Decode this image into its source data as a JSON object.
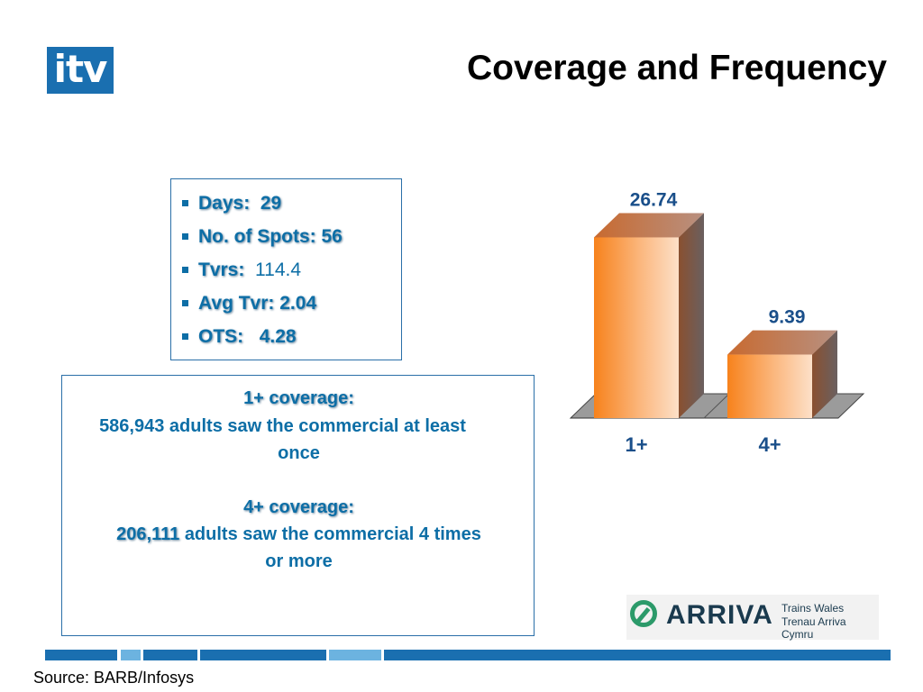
{
  "header": {
    "logo_text": "itv",
    "title": "Coverage and Frequency"
  },
  "stats": {
    "days": {
      "label": "Days:",
      "value": "29"
    },
    "spots": {
      "label": "No. of Spots:",
      "value": "56"
    },
    "tvrs": {
      "label": "Tvrs:",
      "value": "114.4"
    },
    "avg_tvr": {
      "label": "Avg Tvr:",
      "value": "2.04"
    },
    "ots": {
      "label": "OTS:",
      "value": "4.28"
    }
  },
  "coverage": {
    "one_plus_heading": "1+ coverage:",
    "one_plus_text_line1": "586,943 adults saw the commercial at least",
    "one_plus_text_line2": "once",
    "four_plus_heading": "4+ coverage:",
    "four_plus_number": "206,111",
    "four_plus_text_line1": "adults saw the commercial 4 times",
    "four_plus_text_line2": "or more"
  },
  "chart_data": {
    "type": "bar",
    "categories": [
      "1+",
      "4+"
    ],
    "values": [
      26.74,
      9.39
    ],
    "data_labels": [
      "26.74",
      "9.39"
    ],
    "title": "",
    "xlabel": "",
    "ylabel": "",
    "grid": false,
    "three_d": true,
    "bar_color": "#f58220",
    "label_color": "#1a4f8a"
  },
  "branding": {
    "arriva_name": "ARRIVA",
    "arriva_sub1": "Trains Wales",
    "arriva_sub2": "Trenau Arriva Cymru"
  },
  "footer": {
    "source": "Source: BARB/Infosys"
  },
  "colors": {
    "accent_blue": "#0d6ea6",
    "itv_blue": "#1a6fb0"
  }
}
